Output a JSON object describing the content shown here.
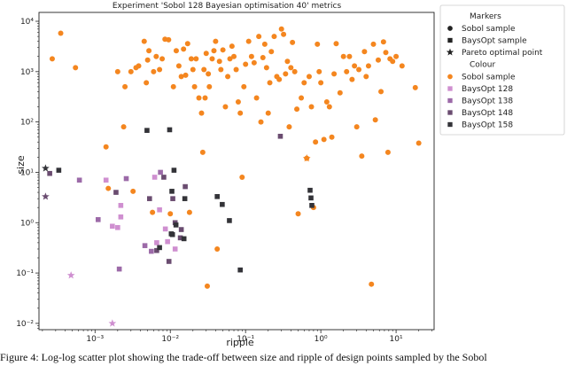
{
  "chart_data": {
    "type": "scatter",
    "title": "Experiment 'Sobol 128 Bayesian optimisation 40' metrics",
    "xlabel": "ripple",
    "ylabel": "size",
    "x_scale": "log",
    "y_scale": "log",
    "xlim": [
      0.00018,
      32
    ],
    "ylim": [
      0.0075,
      15000
    ],
    "x_ticks": [
      {
        "v": 0.001,
        "label": "10⁻³"
      },
      {
        "v": 0.01,
        "label": "10⁻²"
      },
      {
        "v": 0.1,
        "label": "10⁻¹"
      },
      {
        "v": 1,
        "label": "10⁰"
      },
      {
        "v": 10,
        "label": "10¹"
      }
    ],
    "y_ticks": [
      {
        "v": 0.01,
        "label": "10⁻²"
      },
      {
        "v": 0.1,
        "label": "10⁻¹"
      },
      {
        "v": 1,
        "label": "10⁰"
      },
      {
        "v": 10,
        "label": "10¹"
      },
      {
        "v": 100,
        "label": "10²"
      },
      {
        "v": 1000,
        "label": "10³"
      },
      {
        "v": 10000,
        "label": "10⁴"
      }
    ],
    "legend": {
      "placement": "outside-right",
      "markers_title": "Markers",
      "colour_title": "Colour",
      "markers": [
        {
          "label": "Sobol sample",
          "shape": "circle"
        },
        {
          "label": "BaysOpt sample",
          "shape": "square"
        },
        {
          "label": "Pareto optimal point",
          "shape": "star"
        }
      ],
      "colours": [
        {
          "label": "Sobol sample",
          "color": "#f4861f",
          "shape": "circle"
        },
        {
          "label": "BaysOpt 128",
          "color": "#cf8fd0",
          "shape": "square"
        },
        {
          "label": "BaysOpt 138",
          "color": "#9c6aa8",
          "shape": "square"
        },
        {
          "label": "BaysOpt 148",
          "color": "#6a4c70",
          "shape": "square"
        },
        {
          "label": "BaysOpt 158",
          "color": "#333338",
          "shape": "square"
        }
      ]
    },
    "series": [
      {
        "name": "Sobol sample",
        "marker": "circle",
        "color": "#f4861f",
        "points": [
          [
            0.00027,
            1800
          ],
          [
            0.00035,
            5800
          ],
          [
            0.00055,
            1200
          ],
          [
            0.0014,
            32
          ],
          [
            0.0015,
            4.8
          ],
          [
            0.002,
            1000
          ],
          [
            0.0024,
            80
          ],
          [
            0.0025,
            500
          ],
          [
            0.003,
            1000
          ],
          [
            0.0032,
            4.2
          ],
          [
            0.0035,
            1200
          ],
          [
            0.0038,
            1300
          ],
          [
            0.0045,
            4000
          ],
          [
            0.0048,
            600
          ],
          [
            0.005,
            1700
          ],
          [
            0.0052,
            2600
          ],
          [
            0.0058,
            1.6
          ],
          [
            0.006,
            1000
          ],
          [
            0.0065,
            2000
          ],
          [
            0.0072,
            1100
          ],
          [
            0.0078,
            1800
          ],
          [
            0.0085,
            4400
          ],
          [
            0.0095,
            4300
          ],
          [
            0.01,
            1.5
          ],
          [
            0.011,
            500
          ],
          [
            0.012,
            2600
          ],
          [
            0.013,
            1300
          ],
          [
            0.014,
            800
          ],
          [
            0.015,
            2800
          ],
          [
            0.016,
            850
          ],
          [
            0.017,
            3600
          ],
          [
            0.018,
            1.6
          ],
          [
            0.019,
            1800
          ],
          [
            0.02,
            1100
          ],
          [
            0.021,
            500
          ],
          [
            0.022,
            1800
          ],
          [
            0.024,
            300
          ],
          [
            0.026,
            150
          ],
          [
            0.027,
            25
          ],
          [
            0.028,
            1100
          ],
          [
            0.029,
            300
          ],
          [
            0.03,
            2300
          ],
          [
            0.031,
            0.055
          ],
          [
            0.032,
            900
          ],
          [
            0.033,
            500
          ],
          [
            0.036,
            1800
          ],
          [
            0.038,
            2600
          ],
          [
            0.04,
            4000
          ],
          [
            0.042,
            0.3
          ],
          [
            0.045,
            1600
          ],
          [
            0.047,
            1100
          ],
          [
            0.05,
            2700
          ],
          [
            0.054,
            200
          ],
          [
            0.058,
            800
          ],
          [
            0.062,
            1800
          ],
          [
            0.066,
            3200
          ],
          [
            0.07,
            2000
          ],
          [
            0.075,
            1100
          ],
          [
            0.08,
            250
          ],
          [
            0.085,
            150
          ],
          [
            0.09,
            8
          ],
          [
            0.095,
            500
          ],
          [
            0.1,
            1400
          ],
          [
            0.11,
            4000
          ],
          [
            0.12,
            2000
          ],
          [
            0.13,
            1500
          ],
          [
            0.14,
            300
          ],
          [
            0.15,
            5000
          ],
          [
            0.16,
            100
          ],
          [
            0.17,
            1900
          ],
          [
            0.18,
            3500
          ],
          [
            0.19,
            1200
          ],
          [
            0.2,
            150
          ],
          [
            0.21,
            600
          ],
          [
            0.22,
            2500
          ],
          [
            0.24,
            5000
          ],
          [
            0.26,
            800
          ],
          [
            0.28,
            700
          ],
          [
            0.3,
            7000
          ],
          [
            0.32,
            5500
          ],
          [
            0.34,
            900
          ],
          [
            0.36,
            1600
          ],
          [
            0.38,
            80
          ],
          [
            0.4,
            1200
          ],
          [
            0.42,
            3800
          ],
          [
            0.45,
            1000
          ],
          [
            0.48,
            180
          ],
          [
            0.5,
            1.5
          ],
          [
            0.55,
            300
          ],
          [
            0.6,
            600
          ],
          [
            0.65,
            19
          ],
          [
            0.7,
            800
          ],
          [
            0.75,
            200
          ],
          [
            0.8,
            2
          ],
          [
            0.85,
            40
          ],
          [
            0.9,
            3500
          ],
          [
            0.95,
            1000
          ],
          [
            1.0,
            600
          ],
          [
            1.1,
            45
          ],
          [
            1.2,
            250
          ],
          [
            1.3,
            200
          ],
          [
            1.4,
            50
          ],
          [
            1.5,
            900
          ],
          [
            1.6,
            3600
          ],
          [
            1.8,
            380
          ],
          [
            2.0,
            2000
          ],
          [
            2.2,
            1000
          ],
          [
            2.4,
            2000
          ],
          [
            2.6,
            700
          ],
          [
            2.8,
            1300
          ],
          [
            3.0,
            80
          ],
          [
            3.2,
            1100
          ],
          [
            3.5,
            21
          ],
          [
            3.8,
            2500
          ],
          [
            4.0,
            800
          ],
          [
            4.3,
            1300
          ],
          [
            4.7,
            0.06
          ],
          [
            5.0,
            3500
          ],
          [
            5.3,
            110
          ],
          [
            5.8,
            1700
          ],
          [
            6.3,
            400
          ],
          [
            6.8,
            3900
          ],
          [
            7.3,
            2400
          ],
          [
            7.8,
            25
          ],
          [
            8.3,
            1800
          ],
          [
            9.0,
            1600
          ],
          [
            10,
            2000
          ],
          [
            12,
            1300
          ],
          [
            18,
            480
          ],
          [
            20,
            38
          ]
        ]
      },
      {
        "name": "BaysOpt 128",
        "marker": "square",
        "color": "#cf8fd0",
        "points": [
          [
            0.0014,
            7
          ],
          [
            0.0017,
            0.85
          ],
          [
            0.0022,
            2.2
          ],
          [
            0.002,
            0.8
          ],
          [
            0.0022,
            1.3
          ],
          [
            0.0062,
            8
          ],
          [
            0.0066,
            0.4
          ],
          [
            0.0072,
            1.8
          ],
          [
            0.0086,
            0.75
          ],
          [
            0.0092,
            0.42
          ],
          [
            0.0116,
            0.3
          ]
        ]
      },
      {
        "name": "BaysOpt 138",
        "marker": "square",
        "color": "#9c6aa8",
        "points": [
          [
            0.00062,
            7
          ],
          [
            0.0011,
            1.15
          ],
          [
            0.0026,
            7.5
          ],
          [
            0.0021,
            0.12
          ],
          [
            0.0046,
            0.35
          ],
          [
            0.0056,
            0.27
          ],
          [
            0.0074,
            10
          ]
        ]
      },
      {
        "name": "BaysOpt 148",
        "marker": "square",
        "color": "#6a4c70",
        "points": [
          [
            0.00025,
            9.5
          ],
          [
            0.0019,
            4
          ],
          [
            0.0053,
            3
          ],
          [
            0.0096,
            0.17
          ],
          [
            0.0108,
            3
          ],
          [
            0.0116,
            1
          ],
          [
            0.0136,
            0.5
          ],
          [
            0.0158,
            5.2
          ],
          [
            0.0066,
            0.28
          ],
          [
            0.014,
            0.73
          ],
          [
            0.0082,
            8
          ],
          [
            0.29,
            52
          ]
        ]
      },
      {
        "name": "BaysOpt 158",
        "marker": "square",
        "color": "#333338",
        "points": [
          [
            0.00033,
            11
          ],
          [
            0.0049,
            68
          ],
          [
            0.0072,
            0.32
          ],
          [
            0.0098,
            70
          ],
          [
            0.0103,
            0.6
          ],
          [
            0.0107,
            0.58
          ],
          [
            0.0105,
            4.2
          ],
          [
            0.0112,
            11
          ],
          [
            0.0119,
            0.9
          ],
          [
            0.0152,
            0.48
          ],
          [
            0.0156,
            3
          ],
          [
            0.042,
            3.3
          ],
          [
            0.049,
            2.3
          ],
          [
            0.061,
            1.1
          ],
          [
            0.085,
            0.115
          ],
          [
            0.72,
            4.4
          ],
          [
            0.74,
            3.1
          ],
          [
            0.76,
            2.2
          ]
        ]
      },
      {
        "name": "Pareto optimal point",
        "marker": "star",
        "color": "#333338",
        "points": [
          [
            0.00022,
            12
          ]
        ]
      },
      {
        "name": "Pareto optimal point",
        "marker": "star",
        "color": "#6a4c70",
        "points": [
          [
            0.00022,
            3.3
          ]
        ]
      },
      {
        "name": "Pareto optimal point",
        "marker": "star",
        "color": "#cf8fd0",
        "points": [
          [
            0.00048,
            0.09
          ],
          [
            0.0017,
            0.01
          ]
        ]
      },
      {
        "name": "Pareto optimal point",
        "marker": "star",
        "color": "#f4861f",
        "points": [
          [
            0.65,
            19
          ]
        ]
      }
    ]
  },
  "caption": "Figure 4: Log-log scatter plot showing the trade-off between size and ripple of design points sampled by the Sobol"
}
